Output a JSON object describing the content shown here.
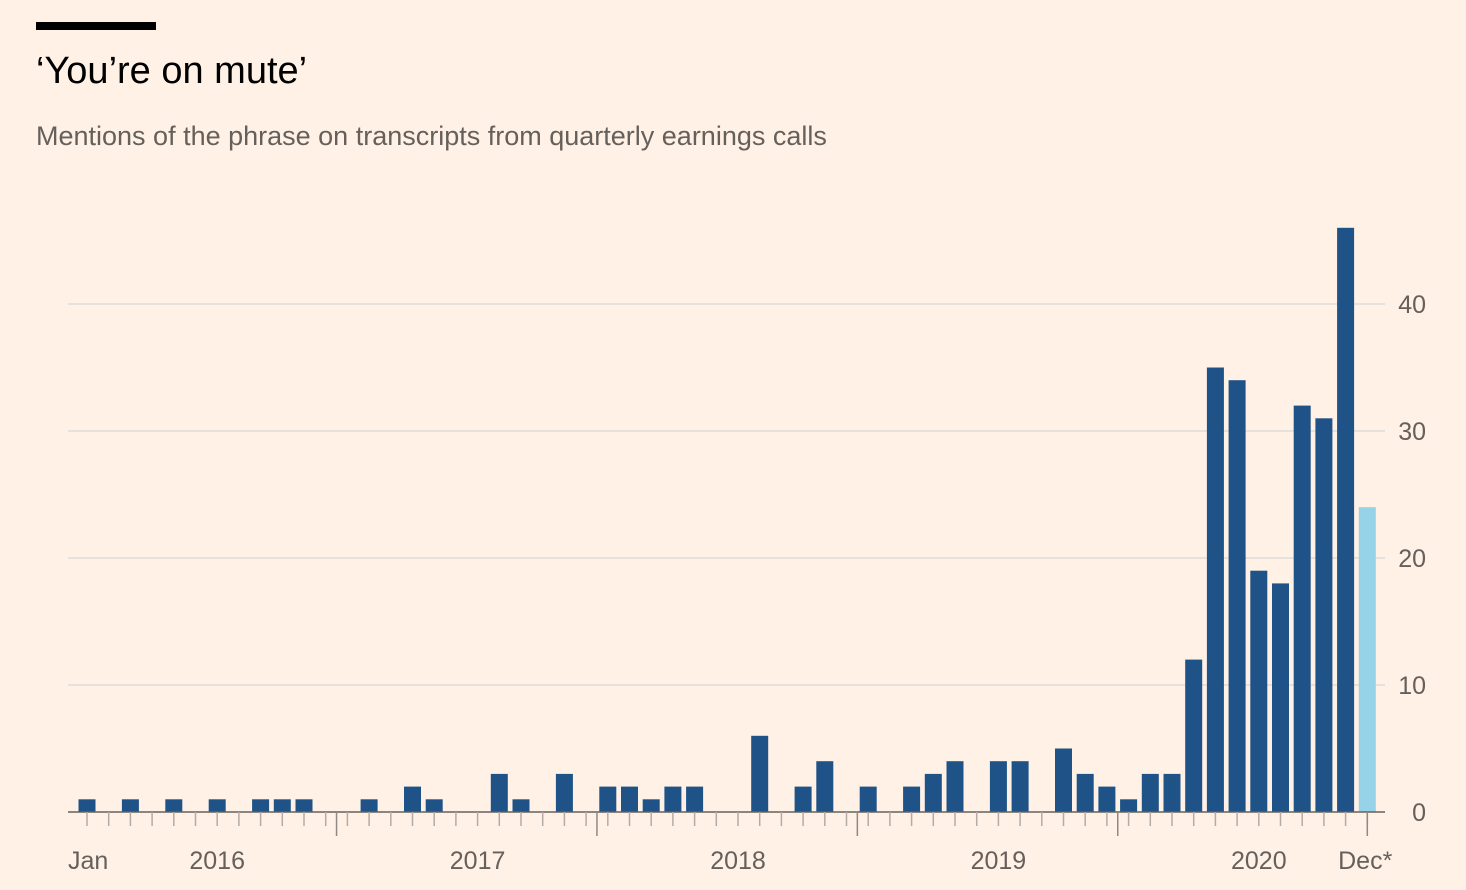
{
  "header": {
    "title": "‘You’re on mute’",
    "subtitle": "Mentions of the phrase on transcripts from quarterly earnings calls"
  },
  "colors": {
    "background": "#fff1e5",
    "bar": "#1f5287",
    "bar_highlight": "#96d2e8",
    "grid": "#dcdcdc",
    "axis": "#66605c",
    "text": "#66605c"
  },
  "chart_data": {
    "type": "bar",
    "title": "‘You’re on mute’",
    "subtitle": "Mentions of the phrase on transcripts from quarterly earnings calls",
    "xlabel": "",
    "ylabel": "",
    "ylim": [
      0,
      46
    ],
    "yticks": [
      0,
      10,
      20,
      30,
      40
    ],
    "ytick_labels": [
      "0",
      "10",
      "20",
      "30",
      "40"
    ],
    "y_axis_side": "right",
    "grid": true,
    "x_labels": [
      {
        "label": "Jan",
        "month_index": 0
      },
      {
        "label": "2016",
        "month_index": 6
      },
      {
        "label": "2017",
        "month_index": 18
      },
      {
        "label": "2018",
        "month_index": 30
      },
      {
        "label": "2019",
        "month_index": 42
      },
      {
        "label": "2020",
        "month_index": 54
      },
      {
        "label": "Dec*",
        "month_index": 59
      }
    ],
    "year_boundaries": [
      12,
      24,
      36,
      48
    ],
    "categories": [
      "Jan 2016",
      "Feb 2016",
      "Mar 2016",
      "Apr 2016",
      "May 2016",
      "Jun 2016",
      "Jul 2016",
      "Aug 2016",
      "Sep 2016",
      "Oct 2016",
      "Nov 2016",
      "Dec 2016",
      "Jan 2017",
      "Feb 2017",
      "Mar 2017",
      "Apr 2017",
      "May 2017",
      "Jun 2017",
      "Jul 2017",
      "Aug 2017",
      "Sep 2017",
      "Oct 2017",
      "Nov 2017",
      "Dec 2017",
      "Jan 2018",
      "Feb 2018",
      "Mar 2018",
      "Apr 2018",
      "May 2018",
      "Jun 2018",
      "Jul 2018",
      "Aug 2018",
      "Sep 2018",
      "Oct 2018",
      "Nov 2018",
      "Dec 2018",
      "Jan 2019",
      "Feb 2019",
      "Mar 2019",
      "Apr 2019",
      "May 2019",
      "Jun 2019",
      "Jul 2019",
      "Aug 2019",
      "Sep 2019",
      "Oct 2019",
      "Nov 2019",
      "Dec 2019",
      "Jan 2020",
      "Feb 2020",
      "Mar 2020",
      "Apr 2020",
      "May 2020",
      "Jun 2020",
      "Jul 2020",
      "Aug 2020",
      "Sep 2020",
      "Oct 2020",
      "Nov 2020",
      "Dec 2020"
    ],
    "values": [
      1,
      0,
      1,
      0,
      1,
      0,
      1,
      0,
      1,
      1,
      1,
      0,
      0,
      1,
      0,
      2,
      1,
      0,
      0,
      3,
      1,
      0,
      3,
      0,
      2,
      2,
      1,
      2,
      2,
      0,
      0,
      6,
      0,
      2,
      4,
      0,
      2,
      0,
      2,
      3,
      4,
      0,
      4,
      4,
      0,
      5,
      3,
      2,
      1,
      3,
      3,
      12,
      35,
      34,
      19,
      18,
      32,
      31,
      46,
      24
    ],
    "highlight_index": 59,
    "note": "Dec* partial month shown in light blue"
  }
}
